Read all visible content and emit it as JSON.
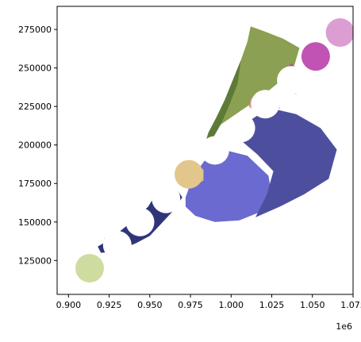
{
  "chart_data": {
    "type": "map",
    "title": "",
    "xlabel": "",
    "ylabel": "",
    "x_offset_label": "1e6",
    "xlim": [
      0.893,
      1.075
    ],
    "ylim": [
      103000,
      290000
    ],
    "x_ticks": [
      0.9,
      0.925,
      0.95,
      0.975,
      1.0,
      1.025,
      1.05,
      1.075
    ],
    "x_tick_labels": [
      "0.900",
      "0.925",
      "0.950",
      "0.975",
      "1.000",
      "1.025",
      "1.050",
      "1.075"
    ],
    "y_ticks": [
      125000,
      150000,
      175000,
      200000,
      225000,
      250000,
      275000
    ],
    "y_tick_labels": [
      "125000",
      "150000",
      "175000",
      "200000",
      "225000",
      "250000",
      "275000"
    ],
    "regions": [
      {
        "color": "#2f3578",
        "points": [
          [
            0.918,
            134000
          ],
          [
            0.925,
            138500
          ],
          [
            0.94,
            151000
          ],
          [
            0.949,
            160000
          ],
          [
            0.953,
            167000
          ],
          [
            0.96,
            170000
          ],
          [
            0.967,
            170500
          ],
          [
            0.97,
            166000
          ],
          [
            0.965,
            158000
          ],
          [
            0.958,
            150000
          ],
          [
            0.95,
            141000
          ],
          [
            0.942,
            136500
          ],
          [
            0.93,
            131000
          ],
          [
            0.92,
            130000
          ]
        ]
      },
      {
        "color": "#6a6ad0",
        "points": [
          [
            0.972,
            166000
          ],
          [
            0.975,
            175000
          ],
          [
            0.981,
            186000
          ],
          [
            0.986,
            193000
          ],
          [
            0.995,
            197000
          ],
          [
            1.01,
            193000
          ],
          [
            1.023,
            180000
          ],
          [
            1.025,
            167000
          ],
          [
            1.019,
            157000
          ],
          [
            1.005,
            151000
          ],
          [
            0.99,
            150000
          ],
          [
            0.978,
            154000
          ],
          [
            0.972,
            160000
          ]
        ]
      },
      {
        "color": "#4d4f9e",
        "points": [
          [
            1.006,
            212000
          ],
          [
            1.016,
            219000
          ],
          [
            1.028,
            223000
          ],
          [
            1.04,
            220000
          ],
          [
            1.055,
            211000
          ],
          [
            1.065,
            197000
          ],
          [
            1.06,
            178000
          ],
          [
            1.045,
            168000
          ],
          [
            1.03,
            160000
          ],
          [
            1.015,
            153000
          ],
          [
            1.022,
            168000
          ],
          [
            1.026,
            183000
          ],
          [
            1.016,
            194000
          ],
          [
            1.006,
            203000
          ]
        ]
      },
      {
        "color": "#8ba052",
        "points": [
          [
            0.986,
            208000
          ],
          [
            0.991,
            218000
          ],
          [
            0.996,
            229000
          ],
          [
            1.001,
            242000
          ],
          [
            1.006,
            255000
          ],
          [
            1.01,
            267000
          ],
          [
            1.012,
            277000
          ],
          [
            1.02,
            274000
          ],
          [
            1.032,
            269000
          ],
          [
            1.042,
            263000
          ],
          [
            1.039,
            252000
          ],
          [
            1.032,
            243000
          ],
          [
            1.024,
            236000
          ],
          [
            1.017,
            230000
          ],
          [
            1.007,
            223000
          ],
          [
            0.996,
            215000
          ]
        ]
      },
      {
        "color": "#5e7a37",
        "points": [
          [
            0.983,
            198000
          ],
          [
            0.986,
            208000
          ],
          [
            0.991,
            218000
          ],
          [
            0.996,
            229000
          ],
          [
            1.001,
            242000
          ],
          [
            1.006,
            255000
          ],
          [
            1.004,
            240000
          ],
          [
            0.999,
            226000
          ],
          [
            0.994,
            214000
          ],
          [
            0.988,
            203000
          ]
        ]
      },
      {
        "color": "#b84aa0",
        "points": [
          [
            1.033,
            248000
          ],
          [
            1.037,
            253000
          ],
          [
            1.041,
            249000
          ],
          [
            1.043,
            240000
          ],
          [
            1.04,
            233000
          ],
          [
            1.035,
            233000
          ],
          [
            1.032,
            240000
          ]
        ]
      },
      {
        "color": "#dd8e95",
        "points": [
          [
            1.012,
            230000
          ],
          [
            1.02,
            232500
          ],
          [
            1.028,
            229000
          ],
          [
            1.03,
            224000
          ],
          [
            1.025,
            220000
          ],
          [
            1.016,
            220500
          ],
          [
            1.011,
            225000
          ]
        ]
      },
      {
        "color": "#8b3a3a",
        "points": [
          [
            0.985,
            198500
          ],
          [
            0.989,
            201000
          ],
          [
            0.992,
            204000
          ],
          [
            0.994,
            201000
          ],
          [
            0.99,
            197000
          ],
          [
            0.986,
            195500
          ]
        ]
      },
      {
        "color": "#e3bd79",
        "points": [
          [
            0.966,
            181000
          ],
          [
            0.971,
            187000
          ],
          [
            0.978,
            188000
          ],
          [
            0.983,
            184000
          ],
          [
            0.983,
            177000
          ],
          [
            0.977,
            173000
          ],
          [
            0.969,
            174500
          ]
        ]
      },
      {
        "color": "#e3b24e",
        "points": [
          [
            0.957,
            170500
          ],
          [
            0.963,
            172000
          ],
          [
            0.967,
            168000
          ],
          [
            0.966,
            160000
          ],
          [
            0.962,
            158500
          ],
          [
            0.957,
            162000
          ]
        ]
      },
      {
        "color": "#a0713c",
        "points": [
          [
            0.922,
            139500
          ],
          [
            0.928,
            141000
          ],
          [
            0.932,
            137500
          ],
          [
            0.928,
            135000
          ],
          [
            0.923,
            136000
          ]
        ]
      }
    ],
    "circles": [
      {
        "x": 0.913,
        "y": 120000,
        "color": "#cfdc9f"
      },
      {
        "x": 0.93,
        "y": 135000,
        "color": "#ffffff"
      },
      {
        "x": 0.944,
        "y": 150000,
        "color": "#ffffff"
      },
      {
        "x": 0.96,
        "y": 165000,
        "color": "#ffffff"
      },
      {
        "x": 0.974,
        "y": 181000,
        "color": "#e3c68b"
      },
      {
        "x": 0.99,
        "y": 196500,
        "color": "#ffffff"
      },
      {
        "x": 1.006,
        "y": 211000,
        "color": "#ffffff"
      },
      {
        "x": 1.021,
        "y": 226500,
        "color": "#ffffff"
      },
      {
        "x": 1.037,
        "y": 242000,
        "color": "#ffffff"
      },
      {
        "x": 1.052,
        "y": 257500,
        "color": "#c153b4"
      },
      {
        "x": 1.067,
        "y": 273000,
        "color": "#dc9ed2"
      }
    ]
  }
}
